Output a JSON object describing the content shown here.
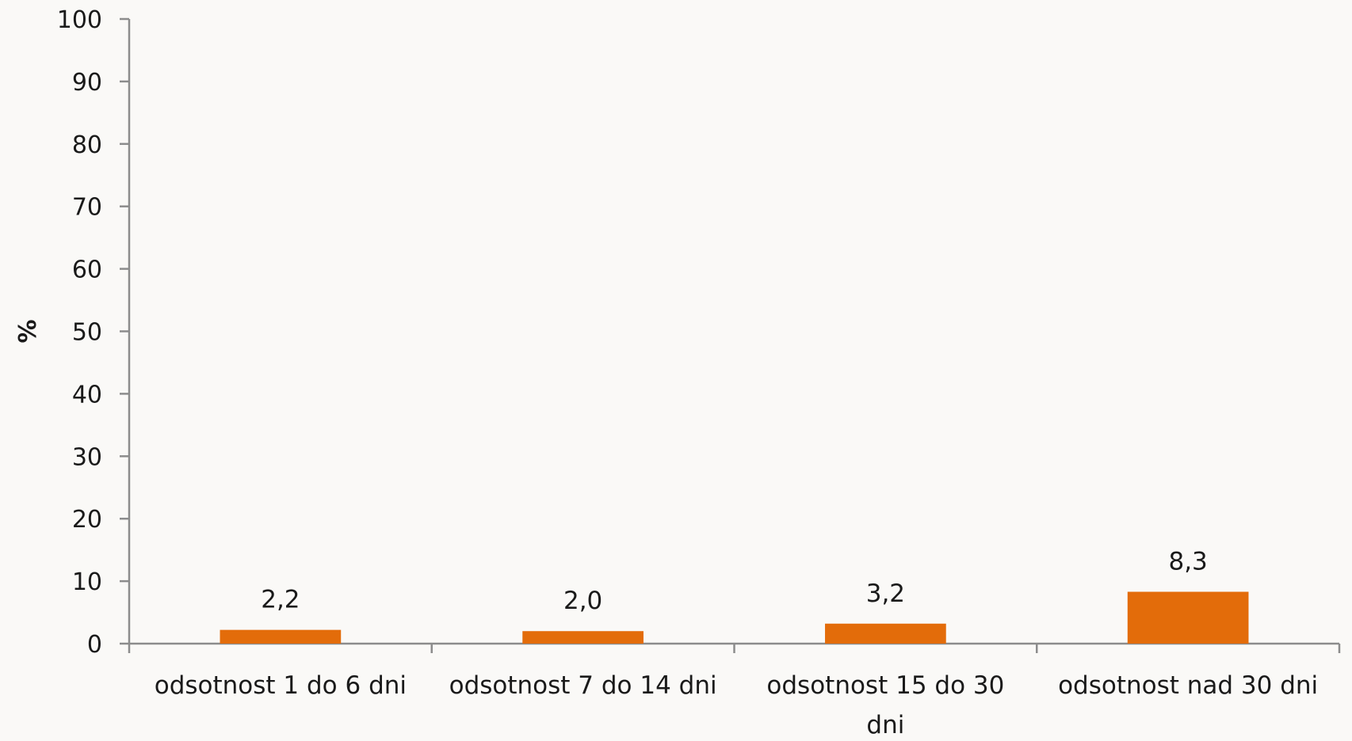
{
  "chart_data": {
    "type": "bar",
    "title": "",
    "xlabel": "",
    "ylabel": "%",
    "ylim": [
      0,
      100
    ],
    "yticks": [
      0,
      10,
      20,
      30,
      40,
      50,
      60,
      70,
      80,
      90,
      100
    ],
    "categories": [
      [
        "odsotnost 1 do 6 dni"
      ],
      [
        "odsotnost 7 do 14 dni"
      ],
      [
        "odsotnost 15 do 30",
        "dni"
      ],
      [
        "odsotnost nad 30 dni"
      ]
    ],
    "values": [
      2.2,
      2.0,
      3.2,
      8.3
    ],
    "data_labels": [
      "2,2",
      "2,0",
      "3,2",
      "8,3"
    ],
    "grid": false,
    "legend": "none",
    "colors": {
      "bar": "#e36c0a",
      "axis": "#8c8c8c",
      "text": "#1a1a1a"
    }
  }
}
